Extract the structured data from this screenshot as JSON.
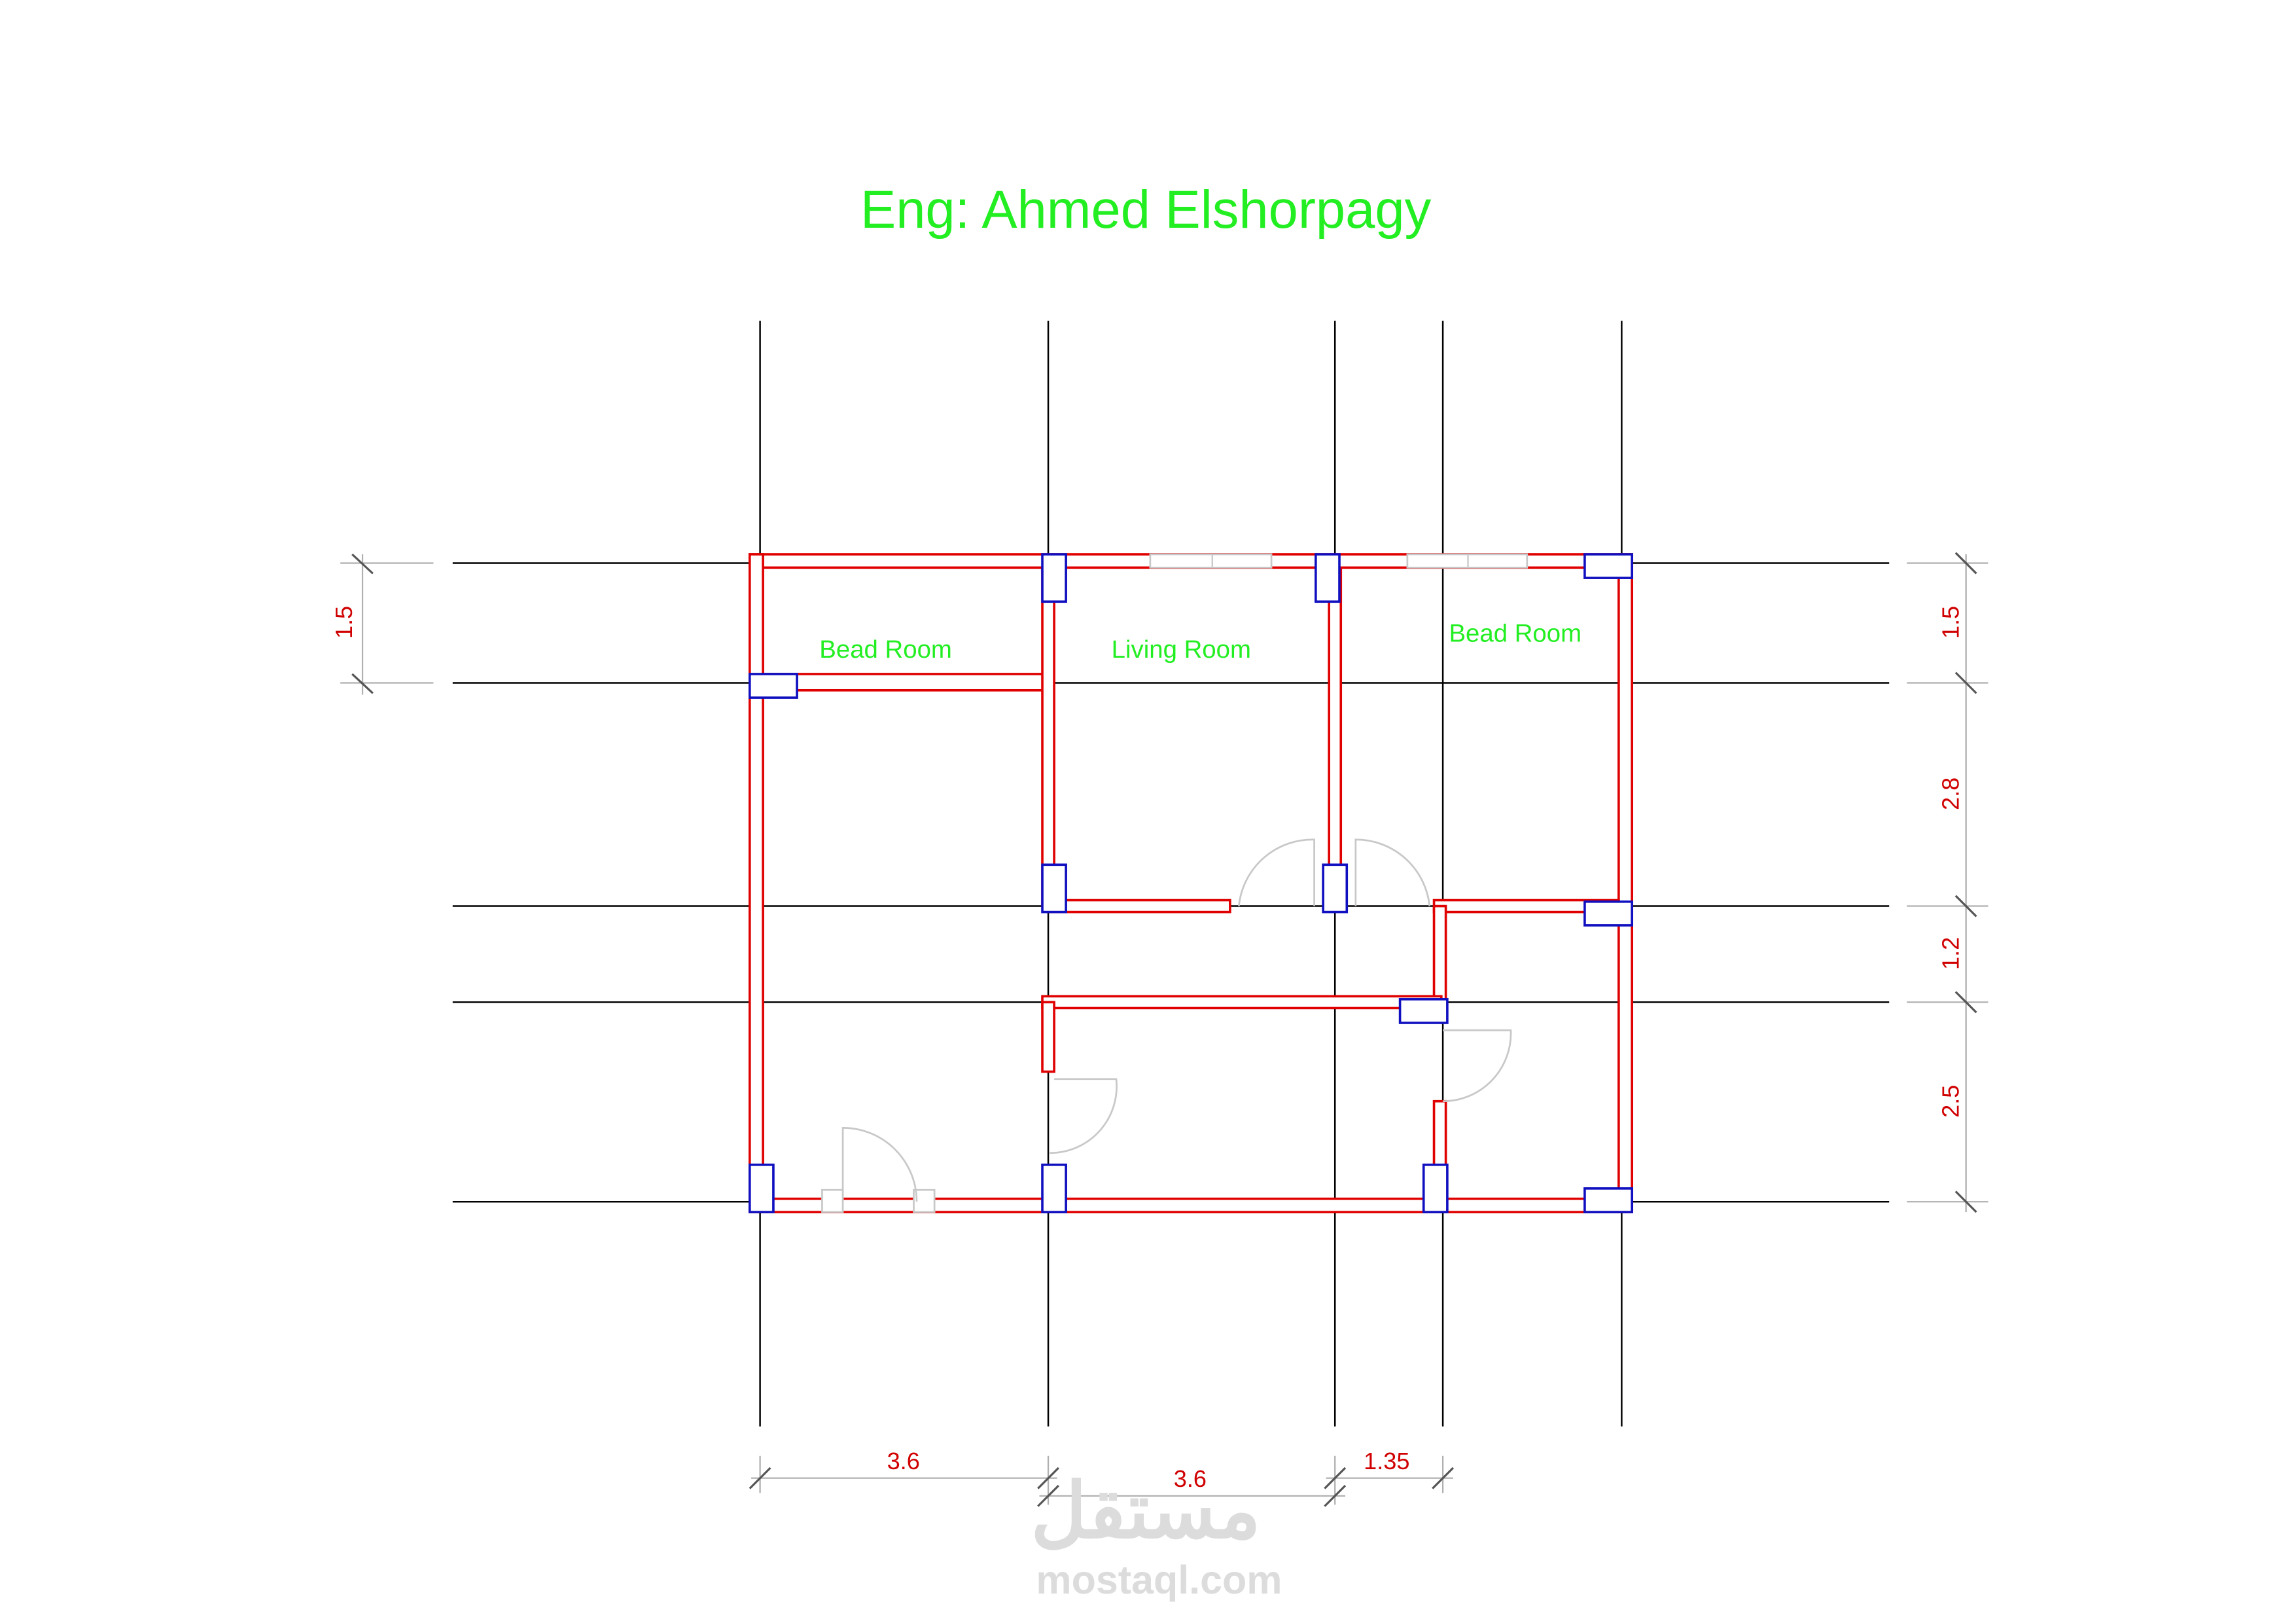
{
  "header": {
    "title": "Eng: Ahmed Elshorpagy"
  },
  "rooms": [
    {
      "label": "Bead Room"
    },
    {
      "label": "Living Room"
    },
    {
      "label": "Bead Room"
    }
  ],
  "dimensions": {
    "left": [
      "1.5"
    ],
    "right": [
      "1.5",
      "2.8",
      "1.2",
      "2.5"
    ],
    "bottom": [
      "3.6",
      "3.6",
      "1.35"
    ]
  },
  "watermark": {
    "logo": "مستقل",
    "url": "mostaql.com"
  }
}
